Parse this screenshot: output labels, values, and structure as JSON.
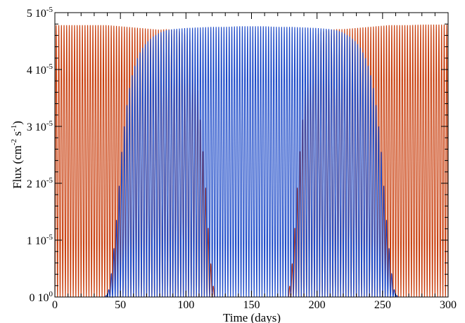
{
  "chart_data": {
    "type": "line",
    "title": "",
    "xlabel": "Time (days)",
    "ylabel": {
      "parts": [
        "Flux (cm",
        "-2",
        " s",
        "-1",
        ")"
      ]
    },
    "xlim": [
      0,
      300
    ],
    "ylim": [
      0,
      5e-05
    ],
    "x_ticks": [
      {
        "value": 0,
        "label": "0"
      },
      {
        "value": 50,
        "label": "50"
      },
      {
        "value": 100,
        "label": "100"
      },
      {
        "value": 150,
        "label": "150"
      },
      {
        "value": 200,
        "label": "200"
      },
      {
        "value": 250,
        "label": "250"
      },
      {
        "value": 300,
        "label": "300"
      }
    ],
    "y_ticks": [
      {
        "value": 0,
        "mantissa": "0 1",
        "base": "0",
        "exp": "0"
      },
      {
        "value": 1e-05,
        "mantissa": "1 1",
        "base": "0",
        "exp": "-5"
      },
      {
        "value": 2e-05,
        "mantissa": "2 1",
        "base": "0",
        "exp": "-5"
      },
      {
        "value": 3e-05,
        "mantissa": "3 1",
        "base": "0",
        "exp": "-5"
      },
      {
        "value": 4e-05,
        "mantissa": "4 1",
        "base": "0",
        "exp": "-5"
      },
      {
        "value": 5e-05,
        "mantissa": "5 1",
        "base": "0",
        "exp": "-5"
      }
    ],
    "series": [
      {
        "color": "#c83c0a",
        "pulse_period_days": 2.0,
        "peaks": [
          [
            1,
            4.78e-05
          ],
          [
            5,
            4.78e-05
          ],
          [
            10,
            4.78e-05
          ],
          [
            15,
            4.78e-05
          ],
          [
            20,
            4.78e-05
          ],
          [
            25,
            4.78e-05
          ],
          [
            30,
            4.78e-05
          ],
          [
            35,
            4.78e-05
          ],
          [
            40,
            4.78e-05
          ],
          [
            45,
            4.77e-05
          ],
          [
            50,
            4.76e-05
          ],
          [
            55,
            4.75e-05
          ],
          [
            60,
            4.74e-05
          ],
          [
            65,
            4.73e-05
          ],
          [
            70,
            4.72e-05
          ],
          [
            75,
            4.71e-05
          ],
          [
            80,
            4.7e-05
          ],
          [
            85,
            4.71e-05
          ],
          [
            90,
            4.7e-05
          ],
          [
            95,
            4.68e-05
          ],
          [
            100,
            4.62e-05
          ],
          [
            104,
            4.5e-05
          ],
          [
            107,
            4.1e-05
          ],
          [
            110,
            3.4e-05
          ],
          [
            113,
            2.55e-05
          ],
          [
            116,
            1.6e-05
          ],
          [
            118,
            8e-06
          ],
          [
            120,
            3.5e-06
          ],
          [
            122,
            0.0
          ],
          [
            178,
            0.0
          ],
          [
            180,
            3.5e-06
          ],
          [
            182,
            8e-06
          ],
          [
            184,
            1.6e-05
          ],
          [
            187,
            2.55e-05
          ],
          [
            190,
            3.4e-05
          ],
          [
            193,
            4.1e-05
          ],
          [
            196,
            4.5e-05
          ],
          [
            200,
            4.62e-05
          ],
          [
            205,
            4.68e-05
          ],
          [
            210,
            4.7e-05
          ],
          [
            215,
            4.71e-05
          ],
          [
            220,
            4.71e-05
          ],
          [
            225,
            4.72e-05
          ],
          [
            230,
            4.73e-05
          ],
          [
            235,
            4.74e-05
          ],
          [
            240,
            4.75e-05
          ],
          [
            245,
            4.76e-05
          ],
          [
            250,
            4.77e-05
          ],
          [
            255,
            4.78e-05
          ],
          [
            260,
            4.78e-05
          ],
          [
            270,
            4.78e-05
          ],
          [
            280,
            4.79e-05
          ],
          [
            290,
            4.79e-05
          ],
          [
            299,
            4.79e-05
          ]
        ]
      },
      {
        "color": "#1a48c8",
        "pulse_period_days": 2.0,
        "peaks": [
          [
            0,
            0.0
          ],
          [
            38,
            0.0
          ],
          [
            40,
            5e-07
          ],
          [
            42,
            2e-06
          ],
          [
            44,
            6e-06
          ],
          [
            46,
            1.1e-05
          ],
          [
            48,
            1.6e-05
          ],
          [
            50,
            2.3e-05
          ],
          [
            52,
            2.8e-05
          ],
          [
            54,
            3.2e-05
          ],
          [
            56,
            3.55e-05
          ],
          [
            58,
            3.8e-05
          ],
          [
            60,
            4e-05
          ],
          [
            63,
            4.2e-05
          ],
          [
            66,
            4.35e-05
          ],
          [
            70,
            4.48e-05
          ],
          [
            75,
            4.58e-05
          ],
          [
            80,
            4.65e-05
          ],
          [
            85,
            4.69e-05
          ],
          [
            90,
            4.71e-05
          ],
          [
            100,
            4.73e-05
          ],
          [
            110,
            4.74e-05
          ],
          [
            120,
            4.75e-05
          ],
          [
            130,
            4.75e-05
          ],
          [
            140,
            4.76e-05
          ],
          [
            150,
            4.76e-05
          ],
          [
            160,
            4.76e-05
          ],
          [
            170,
            4.75e-05
          ],
          [
            180,
            4.75e-05
          ],
          [
            190,
            4.74e-05
          ],
          [
            200,
            4.73e-05
          ],
          [
            210,
            4.71e-05
          ],
          [
            215,
            4.69e-05
          ],
          [
            220,
            4.65e-05
          ],
          [
            225,
            4.58e-05
          ],
          [
            230,
            4.48e-05
          ],
          [
            234,
            4.35e-05
          ],
          [
            237,
            4.2e-05
          ],
          [
            240,
            4e-05
          ],
          [
            242,
            3.8e-05
          ],
          [
            244,
            3.55e-05
          ],
          [
            246,
            3.2e-05
          ],
          [
            248,
            2.8e-05
          ],
          [
            250,
            2.3e-05
          ],
          [
            252,
            1.6e-05
          ],
          [
            254,
            1.1e-05
          ],
          [
            256,
            6e-06
          ],
          [
            258,
            2e-06
          ],
          [
            260,
            5e-07
          ],
          [
            262,
            0.0
          ],
          [
            300,
            0.0
          ]
        ]
      }
    ]
  }
}
